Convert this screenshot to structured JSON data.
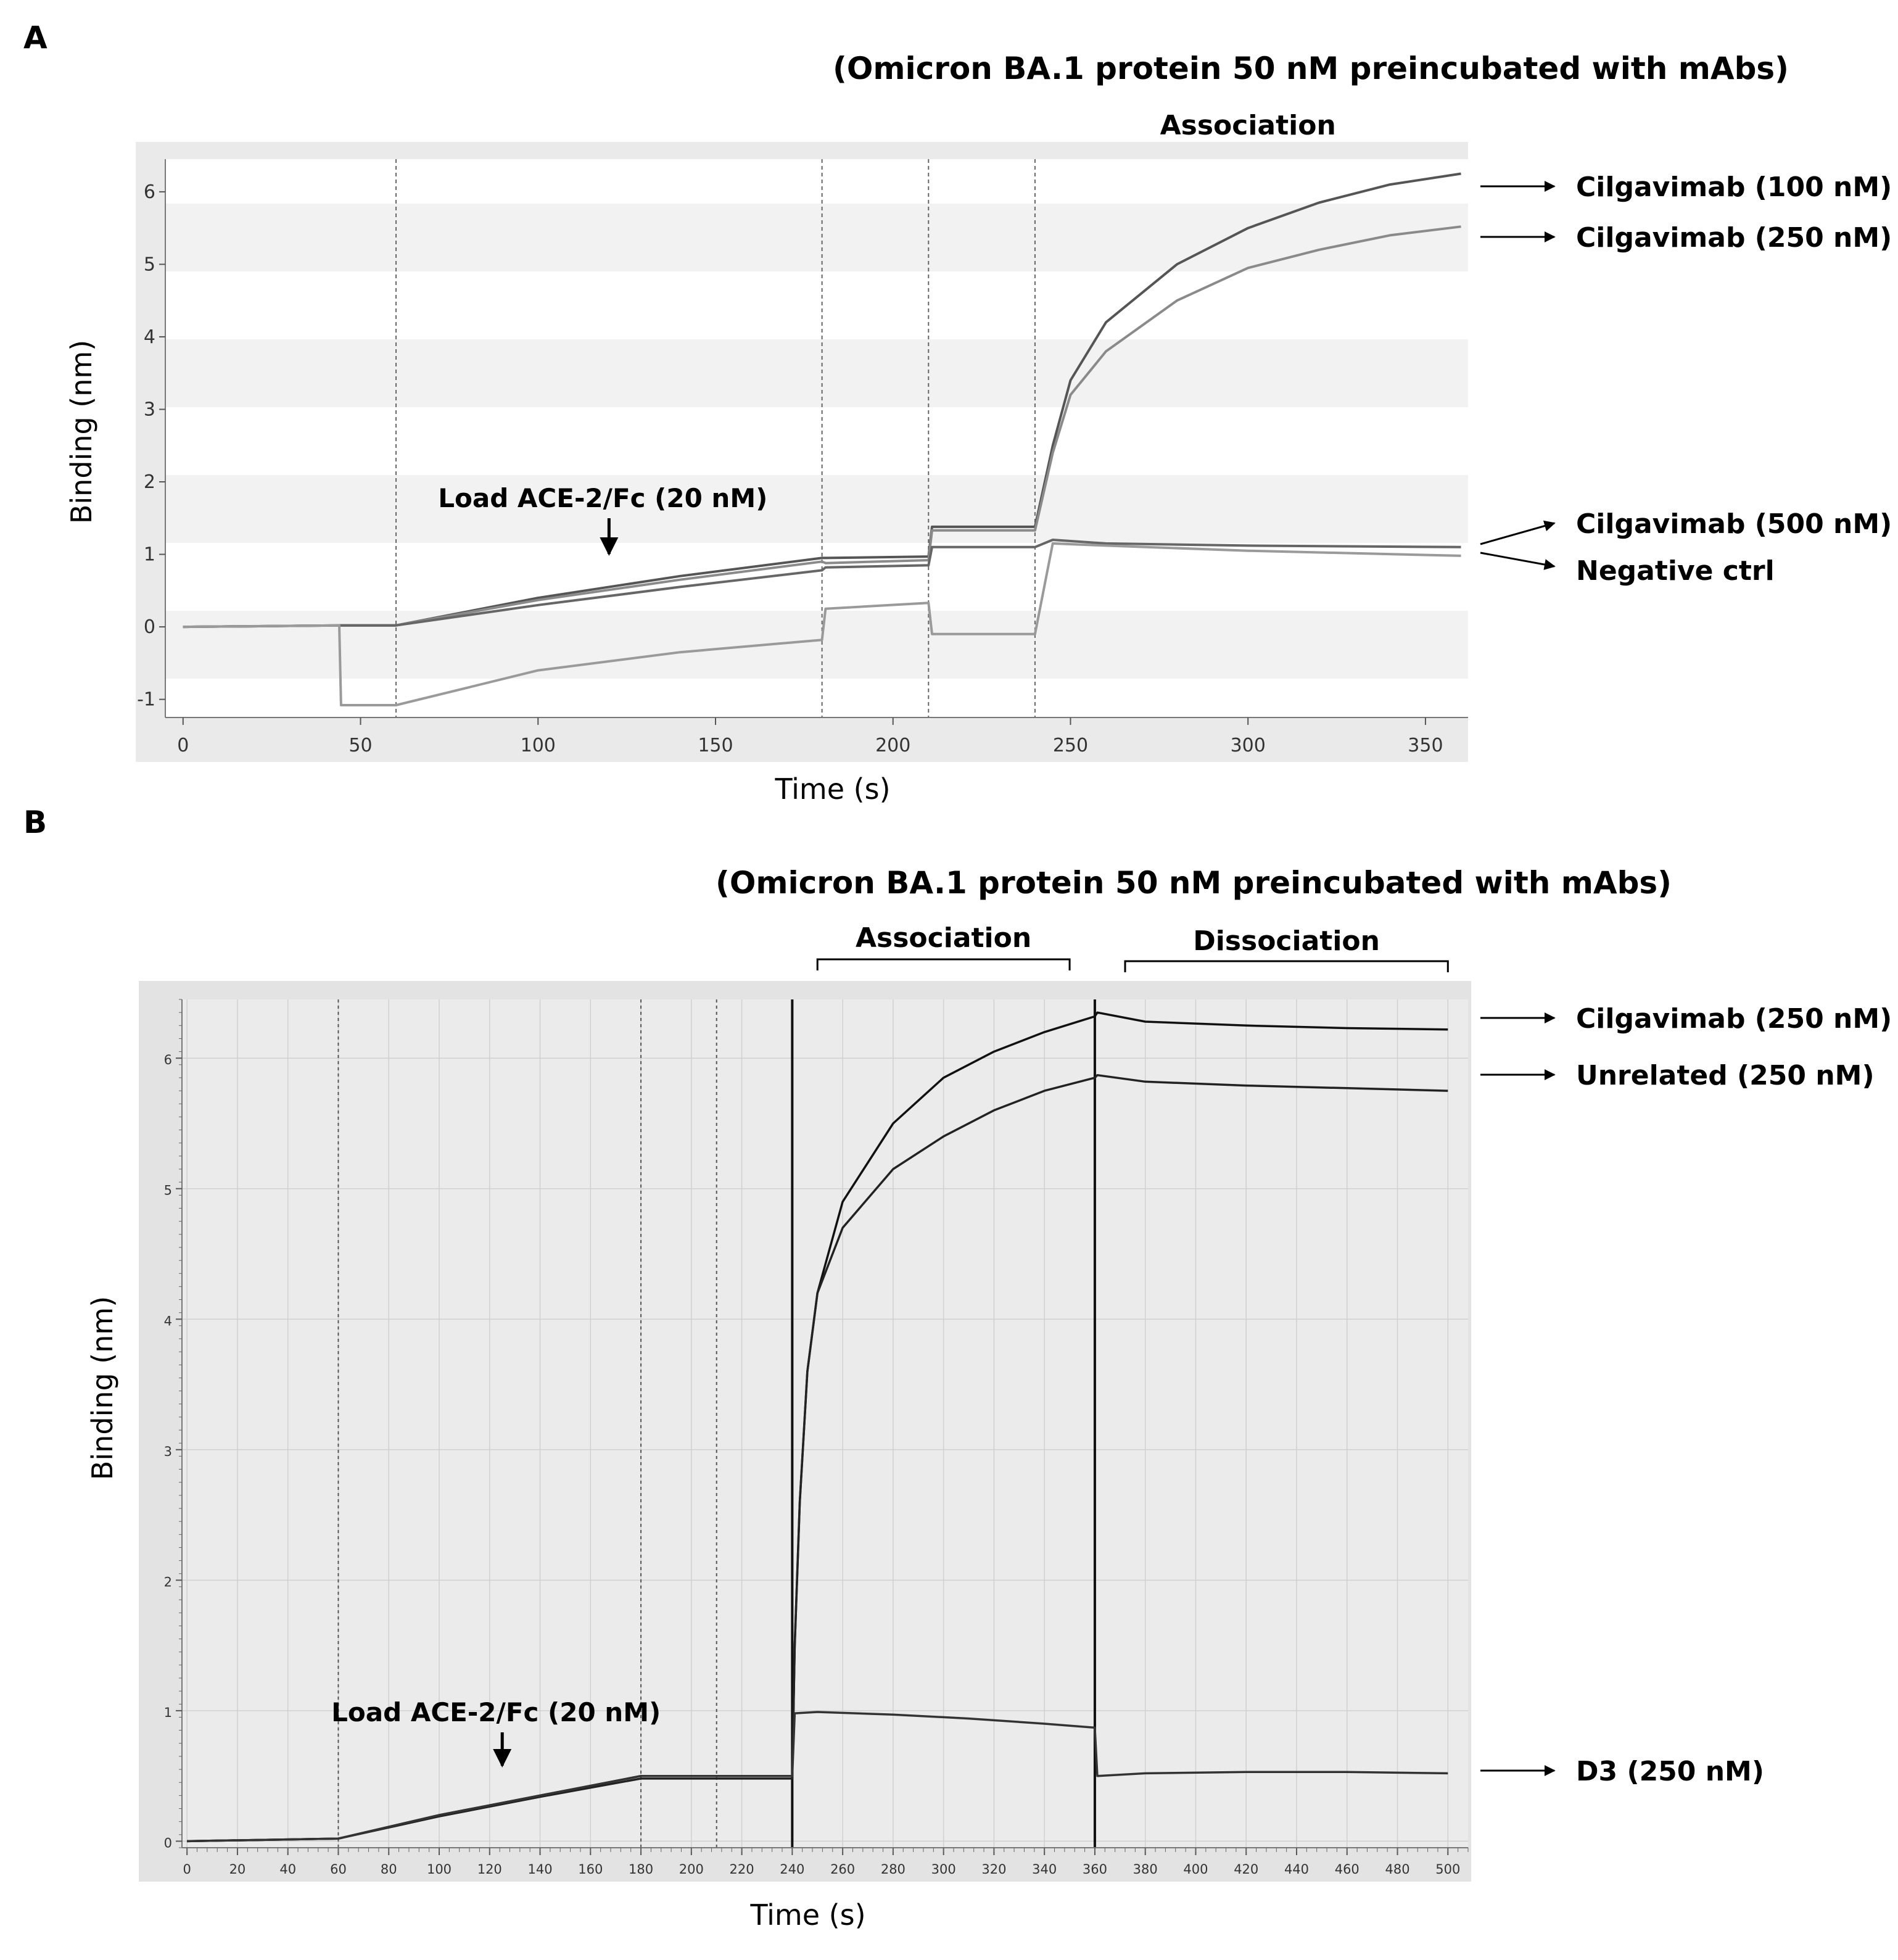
{
  "panels": [
    {
      "letter": "A",
      "title": "(Omicron BA.1 protein 50 nM preincubated with mAbs)",
      "xlabel": "Time (s)",
      "ylabel": "Binding (nm)",
      "phases": [
        {
          "label": "Association",
          "start": 250,
          "end": 350
        }
      ],
      "annotation": {
        "text": "Load ACE-2/Fc (20 nM)",
        "x": 120
      },
      "legend": [
        {
          "text": "Cilgavimab (100 nM)",
          "series": 0
        },
        {
          "text": "Cilgavimab (250 nM)",
          "series": 1
        },
        {
          "text": "Cilgavimab (500 nM)",
          "series": 2
        },
        {
          "text": "Negative ctrl",
          "series": 3
        }
      ]
    },
    {
      "letter": "B",
      "title": "(Omicron BA.1 protein 50 nM preincubated with mAbs)",
      "xlabel": "Time (s)",
      "ylabel": "Binding (nm)",
      "phases": [
        {
          "label": "Association",
          "start": 250,
          "end": 350
        },
        {
          "label": "Dissociation",
          "start": 372,
          "end": 500
        }
      ],
      "annotation": {
        "text": "Load ACE-2/Fc (20 nM)",
        "x": 125
      },
      "legend": [
        {
          "text": "Cilgavimab (250 nM)",
          "series": 0
        },
        {
          "text": "Unrelated (250 nM)",
          "series": 1
        },
        {
          "text": "D3 (250 nM)",
          "series": 2
        }
      ]
    }
  ],
  "chart_data": [
    {
      "type": "line",
      "title": "(Omicron BA.1 protein 50 nM preincubated with mAbs)",
      "xlabel": "Time (s)",
      "ylabel": "Binding (nm)",
      "xlim": [
        -5,
        362
      ],
      "ylim": [
        -1.25,
        6.45
      ],
      "xticks": [
        0,
        50,
        100,
        150,
        200,
        250,
        300,
        350
      ],
      "yticks": [
        -1,
        0,
        1,
        2,
        3,
        4,
        5,
        6
      ],
      "step_boundaries": [
        60,
        180,
        210,
        240
      ],
      "series": [
        {
          "name": "Cilgavimab (100 nM)",
          "color": "#555555",
          "x": [
            0,
            45,
            60,
            100,
            140,
            180,
            181,
            210,
            211,
            240,
            245,
            250,
            260,
            280,
            300,
            320,
            340,
            360
          ],
          "y": [
            0,
            0.02,
            0.02,
            0.4,
            0.7,
            0.95,
            0.95,
            0.97,
            1.38,
            1.38,
            2.5,
            3.4,
            4.2,
            5.0,
            5.5,
            5.85,
            6.1,
            6.25
          ]
        },
        {
          "name": "Cilgavimab (250 nM)",
          "color": "#8a8a8a",
          "x": [
            0,
            45,
            60,
            100,
            140,
            180,
            181,
            210,
            211,
            240,
            245,
            250,
            260,
            280,
            300,
            320,
            340,
            360
          ],
          "y": [
            0,
            0.02,
            0.02,
            0.37,
            0.65,
            0.9,
            0.88,
            0.92,
            1.33,
            1.33,
            2.4,
            3.2,
            3.8,
            4.5,
            4.95,
            5.2,
            5.4,
            5.52
          ]
        },
        {
          "name": "Cilgavimab (500 nM)",
          "color": "#666666",
          "x": [
            0,
            45,
            60,
            100,
            140,
            180,
            181,
            210,
            211,
            240,
            245,
            260,
            300,
            360
          ],
          "y": [
            0,
            0.02,
            0.02,
            0.3,
            0.55,
            0.78,
            0.82,
            0.85,
            1.1,
            1.1,
            1.2,
            1.15,
            1.12,
            1.1
          ]
        },
        {
          "name": "Negative ctrl",
          "color": "#9a9a9a",
          "x": [
            0,
            44,
            44.5,
            60,
            100,
            140,
            180,
            181,
            210,
            211,
            240,
            245,
            260,
            300,
            360
          ],
          "y": [
            0,
            0.02,
            -1.08,
            -1.08,
            -0.6,
            -0.35,
            -0.18,
            0.25,
            0.33,
            -0.1,
            -0.1,
            1.15,
            1.12,
            1.05,
            0.98
          ]
        }
      ]
    },
    {
      "type": "line",
      "title": "(Omicron BA.1 protein 50 nM preincubated with mAbs)",
      "xlabel": "Time (s)",
      "ylabel": "Binding (nm)",
      "xlim": [
        -2,
        508
      ],
      "ylim": [
        -0.05,
        6.45
      ],
      "xticks": [
        0,
        20,
        40,
        60,
        80,
        100,
        120,
        140,
        160,
        180,
        200,
        220,
        240,
        260,
        280,
        300,
        320,
        340,
        360,
        380,
        400,
        420,
        440,
        460,
        480,
        500
      ],
      "yticks": [
        0,
        1,
        2,
        3,
        4,
        5,
        6
      ],
      "step_boundaries": [
        60,
        180,
        210,
        240,
        360
      ],
      "series": [
        {
          "name": "Cilgavimab (250 nM)",
          "color": "#111111",
          "x": [
            0,
            60,
            100,
            140,
            180,
            210,
            240,
            241,
            243,
            246,
            250,
            260,
            280,
            300,
            320,
            340,
            360,
            361,
            380,
            420,
            460,
            500
          ],
          "y": [
            0,
            0.02,
            0.2,
            0.35,
            0.5,
            0.5,
            0.5,
            1.5,
            2.6,
            3.6,
            4.2,
            4.9,
            5.5,
            5.85,
            6.05,
            6.2,
            6.32,
            6.35,
            6.28,
            6.25,
            6.23,
            6.22
          ]
        },
        {
          "name": "Unrelated (250 nM)",
          "color": "#222222",
          "x": [
            0,
            60,
            100,
            140,
            180,
            210,
            240,
            241,
            243,
            246,
            250,
            260,
            280,
            300,
            320,
            340,
            360,
            361,
            380,
            420,
            460,
            500
          ],
          "y": [
            0,
            0.02,
            0.19,
            0.34,
            0.48,
            0.48,
            0.48,
            1.5,
            2.6,
            3.6,
            4.2,
            4.7,
            5.15,
            5.4,
            5.6,
            5.75,
            5.85,
            5.87,
            5.82,
            5.79,
            5.77,
            5.75
          ]
        },
        {
          "name": "D3 (250 nM)",
          "color": "#333333",
          "x": [
            0,
            60,
            100,
            140,
            180,
            210,
            240,
            241,
            250,
            280,
            310,
            340,
            360,
            361,
            380,
            420,
            460,
            500
          ],
          "y": [
            0,
            0.02,
            0.2,
            0.35,
            0.5,
            0.5,
            0.5,
            0.98,
            0.99,
            0.97,
            0.94,
            0.9,
            0.87,
            0.5,
            0.52,
            0.53,
            0.53,
            0.52
          ]
        }
      ]
    }
  ]
}
